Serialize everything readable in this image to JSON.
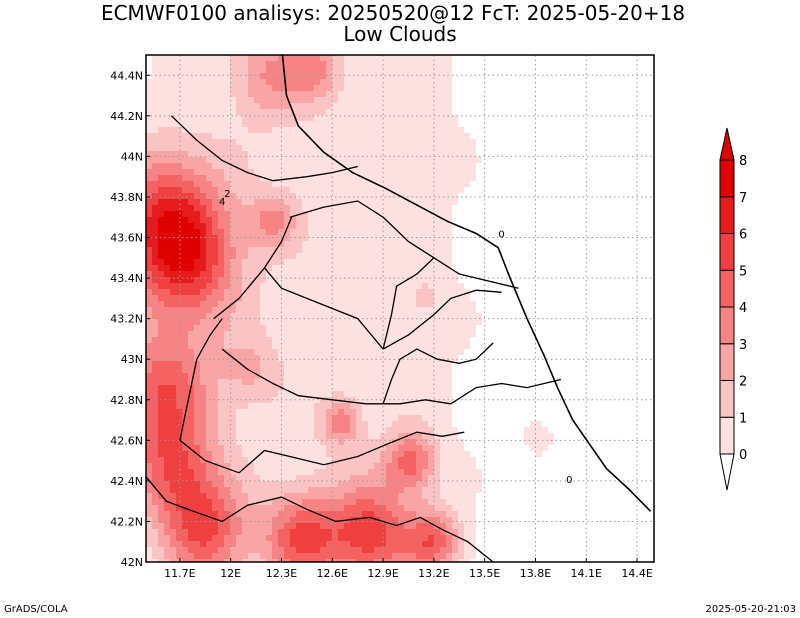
{
  "title": {
    "line1": "ECMWF0100 analisys: 20250520@12 FcT: 2025-05-20+18",
    "line2": "Low Clouds"
  },
  "footer": {
    "left": "GrADS/COLA",
    "right": "2025-05-20-21:03"
  },
  "map": {
    "lon_range": [
      11.5,
      14.5
    ],
    "lat_range": [
      42.0,
      44.5
    ],
    "lon_ticks": [
      "11.7E",
      "12E",
      "12.3E",
      "12.6E",
      "12.9E",
      "13.2E",
      "13.5E",
      "13.8E",
      "14.1E",
      "14.4E"
    ],
    "lon_tick_values": [
      11.7,
      12.0,
      12.3,
      12.6,
      12.9,
      13.2,
      13.5,
      13.8,
      14.1,
      14.4
    ],
    "lat_ticks": [
      "42N",
      "42.2N",
      "42.4N",
      "42.6N",
      "42.8N",
      "43N",
      "43.2N",
      "43.4N",
      "43.6N",
      "43.8N",
      "44N",
      "44.2N",
      "44.4N"
    ],
    "lat_tick_values": [
      42.0,
      42.2,
      42.4,
      42.6,
      42.8,
      43.0,
      43.2,
      43.4,
      43.6,
      43.8,
      44.0,
      44.2,
      44.4
    ],
    "grid": true,
    "contour_labels": [
      {
        "text": "0",
        "lon": 13.6,
        "lat": 43.6
      },
      {
        "text": "0",
        "lon": 14.0,
        "lat": 42.39
      },
      {
        "text": "2",
        "lon": 11.98,
        "lat": 43.8
      },
      {
        "text": "4",
        "lon": 11.95,
        "lat": 43.76
      }
    ]
  },
  "colorbar": {
    "levels": [
      "0",
      "1",
      "2",
      "3",
      "4",
      "5",
      "6",
      "7",
      "8"
    ],
    "colors": [
      "#ffffff",
      "#fde0e0",
      "#fbc4c4",
      "#f9a5a5",
      "#f78484",
      "#f46262",
      "#f03f3f",
      "#e61c1c",
      "#e00000"
    ]
  },
  "field": {
    "base": [
      0.9,
      1.15,
      1.35,
      1.5,
      1.45,
      1.3,
      0.7,
      0.3,
      0.2,
      0.2
    ],
    "blobs": [
      {
        "lon": 11.62,
        "lat": 43.7,
        "r": 0.34,
        "v": 5.4
      },
      {
        "lon": 11.75,
        "lat": 43.45,
        "r": 0.3,
        "v": 4.2
      },
      {
        "lon": 11.6,
        "lat": 42.85,
        "r": 0.3,
        "v": 4.6
      },
      {
        "lon": 11.66,
        "lat": 42.45,
        "r": 0.25,
        "v": 4.2
      },
      {
        "lon": 11.85,
        "lat": 42.15,
        "r": 0.25,
        "v": 4.8
      },
      {
        "lon": 12.42,
        "lat": 42.12,
        "r": 0.22,
        "v": 4.6
      },
      {
        "lon": 12.82,
        "lat": 42.14,
        "r": 0.24,
        "v": 5.2
      },
      {
        "lon": 13.2,
        "lat": 42.1,
        "r": 0.16,
        "v": 4.2
      },
      {
        "lon": 13.06,
        "lat": 42.5,
        "r": 0.15,
        "v": 4.2
      },
      {
        "lon": 12.65,
        "lat": 42.69,
        "r": 0.11,
        "v": 3.4
      },
      {
        "lon": 12.22,
        "lat": 44.4,
        "r": 0.22,
        "v": 2.7
      },
      {
        "lon": 12.5,
        "lat": 44.43,
        "r": 0.16,
        "v": 2.5
      },
      {
        "lon": 12.25,
        "lat": 43.68,
        "r": 0.14,
        "v": 2.8
      },
      {
        "lon": 12.12,
        "lat": 42.95,
        "r": 0.17,
        "v": 1.8
      },
      {
        "lon": 13.82,
        "lat": 42.6,
        "r": 0.08,
        "v": 1.7
      },
      {
        "lon": 13.15,
        "lat": 43.3,
        "r": 0.1,
        "v": 1.2
      }
    ]
  },
  "borders": {
    "coast": [
      [
        12.3,
        44.55
      ],
      [
        12.33,
        44.3
      ],
      [
        12.4,
        44.15
      ],
      [
        12.55,
        44.02
      ],
      [
        12.72,
        43.92
      ],
      [
        12.92,
        43.84
      ],
      [
        13.1,
        43.76
      ],
      [
        13.28,
        43.68
      ],
      [
        13.45,
        43.62
      ],
      [
        13.58,
        43.55
      ],
      [
        13.65,
        43.4
      ],
      [
        13.75,
        43.2
      ],
      [
        13.85,
        43.02
      ],
      [
        13.93,
        42.86
      ],
      [
        14.02,
        42.7
      ],
      [
        14.12,
        42.58
      ],
      [
        14.22,
        42.46
      ],
      [
        14.35,
        42.36
      ],
      [
        14.48,
        42.25
      ]
    ],
    "region_lines": [
      [
        [
          11.65,
          44.2
        ],
        [
          11.8,
          44.08
        ],
        [
          11.95,
          43.98
        ],
        [
          12.1,
          43.92
        ],
        [
          12.25,
          43.88
        ],
        [
          12.45,
          43.9
        ],
        [
          12.6,
          43.92
        ],
        [
          12.75,
          43.95
        ]
      ],
      [
        [
          12.35,
          43.7
        ],
        [
          12.55,
          43.75
        ],
        [
          12.75,
          43.78
        ],
        [
          12.9,
          43.7
        ],
        [
          13.05,
          43.58
        ],
        [
          13.2,
          43.5
        ],
        [
          13.35,
          43.42
        ],
        [
          13.55,
          43.38
        ],
        [
          13.7,
          43.35
        ]
      ],
      [
        [
          11.9,
          43.2
        ],
        [
          12.05,
          43.3
        ],
        [
          12.2,
          43.45
        ],
        [
          12.3,
          43.58
        ],
        [
          12.36,
          43.7
        ]
      ],
      [
        [
          11.95,
          43.05
        ],
        [
          12.1,
          42.95
        ],
        [
          12.25,
          42.88
        ],
        [
          12.4,
          42.82
        ],
        [
          12.6,
          42.8
        ],
        [
          12.8,
          42.78
        ],
        [
          13.0,
          42.78
        ],
        [
          13.15,
          42.8
        ],
        [
          13.3,
          42.78
        ]
      ],
      [
        [
          11.7,
          42.6
        ],
        [
          11.85,
          42.5
        ],
        [
          12.05,
          42.44
        ],
        [
          12.2,
          42.55
        ],
        [
          12.35,
          42.52
        ],
        [
          12.55,
          42.48
        ],
        [
          12.75,
          42.52
        ],
        [
          12.92,
          42.58
        ],
        [
          13.1,
          42.64
        ],
        [
          13.25,
          42.62
        ],
        [
          13.38,
          42.64
        ]
      ],
      [
        [
          13.3,
          42.78
        ],
        [
          13.45,
          42.86
        ],
        [
          13.6,
          42.88
        ],
        [
          13.75,
          42.86
        ],
        [
          13.95,
          42.9
        ]
      ],
      [
        [
          12.9,
          43.05
        ],
        [
          13.05,
          43.12
        ],
        [
          13.2,
          43.22
        ],
        [
          13.3,
          43.3
        ],
        [
          13.45,
          43.34
        ],
        [
          13.6,
          43.33
        ]
      ],
      [
        [
          12.9,
          43.05
        ],
        [
          12.95,
          43.22
        ],
        [
          12.98,
          43.36
        ],
        [
          13.1,
          43.42
        ],
        [
          13.2,
          43.5
        ]
      ],
      [
        [
          11.5,
          42.42
        ],
        [
          11.62,
          42.3
        ],
        [
          11.78,
          42.25
        ],
        [
          11.95,
          42.2
        ],
        [
          12.1,
          42.28
        ],
        [
          12.3,
          42.32
        ],
        [
          12.45,
          42.26
        ],
        [
          12.62,
          42.2
        ],
        [
          12.82,
          42.22
        ],
        [
          12.98,
          42.18
        ],
        [
          13.12,
          42.22
        ],
        [
          13.25,
          42.16
        ],
        [
          13.4,
          42.1
        ],
        [
          13.55,
          42.0
        ]
      ],
      [
        [
          12.9,
          42.78
        ],
        [
          12.95,
          42.9
        ],
        [
          13.0,
          43.0
        ],
        [
          13.1,
          43.05
        ],
        [
          13.22,
          43.0
        ],
        [
          13.35,
          42.98
        ],
        [
          13.45,
          43.0
        ],
        [
          13.55,
          43.08
        ]
      ],
      [
        [
          12.2,
          43.45
        ],
        [
          12.3,
          43.35
        ],
        [
          12.45,
          43.3
        ],
        [
          12.6,
          43.25
        ],
        [
          12.75,
          43.2
        ],
        [
          12.9,
          43.05
        ]
      ],
      [
        [
          11.7,
          42.6
        ],
        [
          11.75,
          42.8
        ],
        [
          11.8,
          43.0
        ],
        [
          11.88,
          43.12
        ],
        [
          11.95,
          43.2
        ]
      ]
    ]
  }
}
